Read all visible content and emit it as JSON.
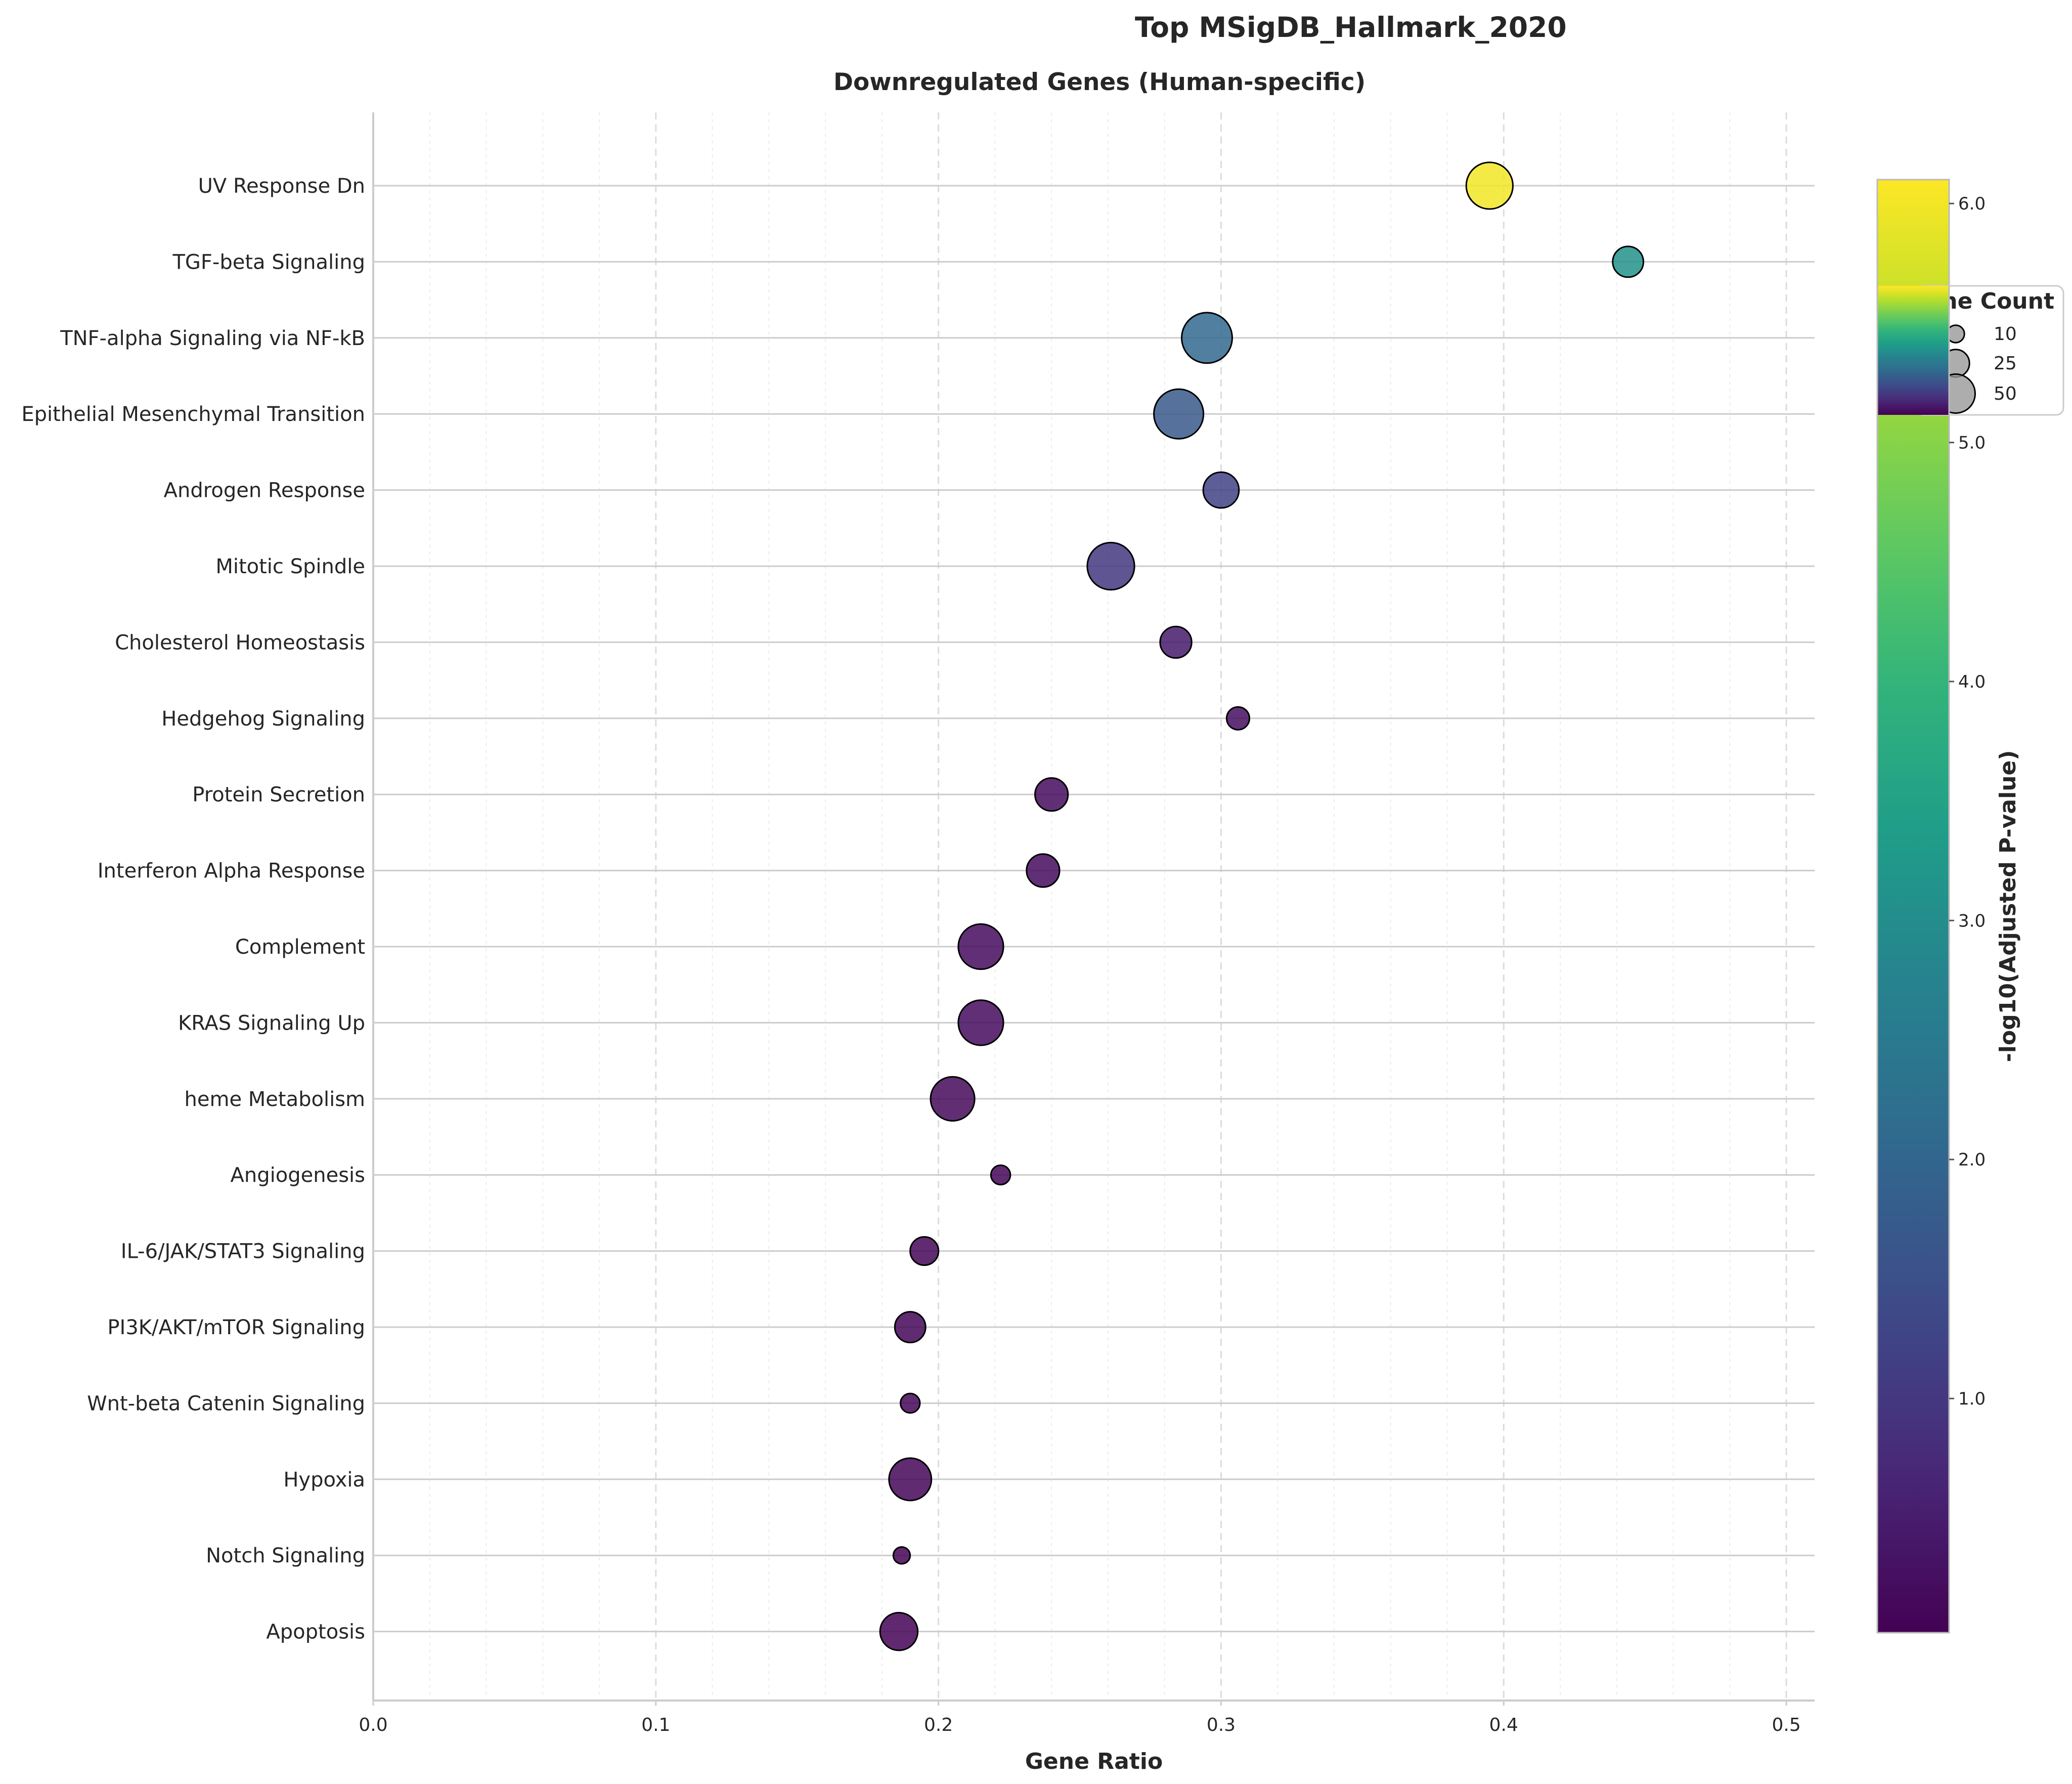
{
  "chart_data": {
    "type": "scatter",
    "title": "Top MSigDB_Hallmark_2020",
    "subtitle": "Downregulated Genes (Human-specific)",
    "xlabel": "Gene Ratio",
    "ylabel": "",
    "xlim": [
      0,
      0.51
    ],
    "xticks": [
      "0.0",
      "0.1",
      "0.2",
      "0.3",
      "0.4",
      "0.5"
    ],
    "grid": true,
    "colorbar": {
      "label": "-log10(Adjusted P-value)",
      "range": [
        0.02,
        6.1
      ],
      "ticks": [
        "1.0",
        "2.0",
        "3.0",
        "4.0",
        "5.0",
        "6.0"
      ],
      "colormap": "viridis"
    },
    "size_legend": {
      "title": "Gene Count",
      "entries": [
        "10",
        "25",
        "50"
      ],
      "placement": "upper right"
    },
    "points": [
      {
        "term": "UV Response Dn",
        "gene_ratio": 0.395,
        "gene_count": 46,
        "neg_log10_padj": 6.0
      },
      {
        "term": "TGF-beta Signaling",
        "gene_ratio": 0.444,
        "gene_count": 20,
        "neg_log10_padj": 3.1
      },
      {
        "term": "TNF-alpha Signaling via NF-kB",
        "gene_ratio": 0.295,
        "gene_count": 54,
        "neg_log10_padj": 2.05
      },
      {
        "term": "Epithelial Mesenchymal Transition",
        "gene_ratio": 0.285,
        "gene_count": 52,
        "neg_log10_padj": 1.7
      },
      {
        "term": "Androgen Response",
        "gene_ratio": 0.3,
        "gene_count": 27,
        "neg_log10_padj": 1.2
      },
      {
        "term": "Mitotic Spindle",
        "gene_ratio": 0.261,
        "gene_count": 47,
        "neg_log10_padj": 1.0
      },
      {
        "term": "Cholesterol Homeostasis",
        "gene_ratio": 0.284,
        "gene_count": 21,
        "neg_log10_padj": 0.45
      },
      {
        "term": "Hedgehog Signaling",
        "gene_ratio": 0.306,
        "gene_count": 11,
        "neg_log10_padj": 0.25
      },
      {
        "term": "Protein Secretion",
        "gene_ratio": 0.24,
        "gene_count": 23,
        "neg_log10_padj": 0.2
      },
      {
        "term": "Interferon Alpha Response",
        "gene_ratio": 0.237,
        "gene_count": 23,
        "neg_log10_padj": 0.2
      },
      {
        "term": "Complement",
        "gene_ratio": 0.215,
        "gene_count": 43,
        "neg_log10_padj": 0.2
      },
      {
        "term": "KRAS Signaling Up",
        "gene_ratio": 0.215,
        "gene_count": 43,
        "neg_log10_padj": 0.2
      },
      {
        "term": "heme Metabolism",
        "gene_ratio": 0.205,
        "gene_count": 41,
        "neg_log10_padj": 0.15
      },
      {
        "term": "Angiogenesis",
        "gene_ratio": 0.222,
        "gene_count": 8,
        "neg_log10_padj": 0.1
      },
      {
        "term": "IL-6/JAK/STAT3 Signaling",
        "gene_ratio": 0.195,
        "gene_count": 17,
        "neg_log10_padj": 0.1
      },
      {
        "term": "PI3K/AKT/mTOR  Signaling",
        "gene_ratio": 0.19,
        "gene_count": 20,
        "neg_log10_padj": 0.1
      },
      {
        "term": "Wnt-beta Catenin Signaling",
        "gene_ratio": 0.19,
        "gene_count": 8,
        "neg_log10_padj": 0.1
      },
      {
        "term": "Hypoxia",
        "gene_ratio": 0.19,
        "gene_count": 38,
        "neg_log10_padj": 0.1
      },
      {
        "term": "Notch Signaling",
        "gene_ratio": 0.187,
        "gene_count": 6,
        "neg_log10_padj": 0.05
      },
      {
        "term": "Apoptosis",
        "gene_ratio": 0.186,
        "gene_count": 30,
        "neg_log10_padj": 0.05
      }
    ]
  }
}
